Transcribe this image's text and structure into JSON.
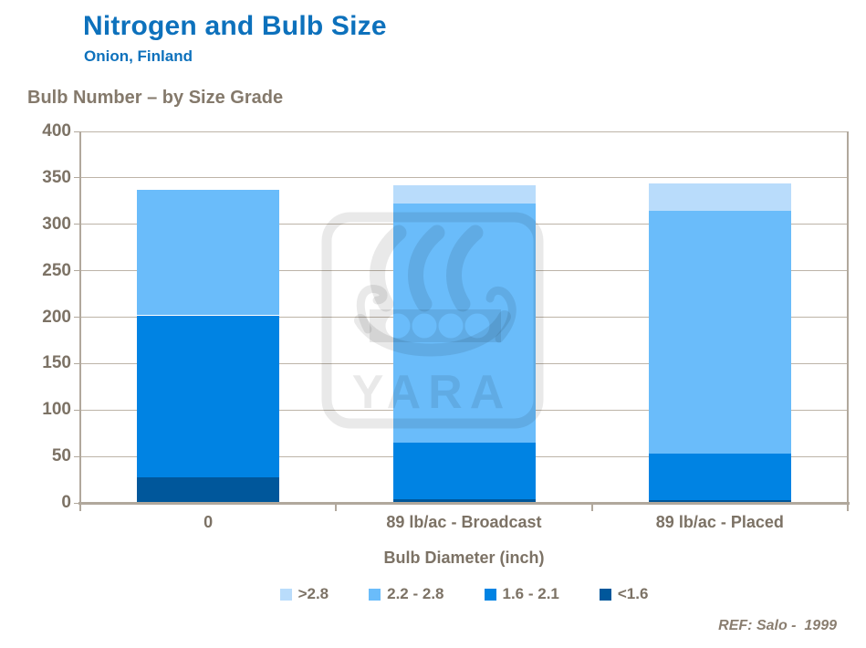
{
  "header": {
    "title": "Nitrogen and Bulb Size",
    "subtitle": "Onion, Finland"
  },
  "chart": {
    "heading": "Bulb Number – by Size Grade"
  },
  "watermark": {
    "text": "YARA"
  },
  "footer": {
    "ref": "REF: Salo -  1999"
  },
  "colors": {
    "title_blue": "#0d71bc",
    "axis_text": "#7c7265",
    "heading_text": "#84796b",
    "gridline": "#bdb4a8",
    "axis_line": "#b1a89c"
  },
  "chart_data": {
    "type": "bar",
    "stacked": true,
    "title": "Bulb Number – by Size Grade",
    "xlabel": "Bulb Diameter (inch)",
    "ylabel": "",
    "ylim": [
      0,
      400
    ],
    "ytick_step": 50,
    "grid": true,
    "legend_position": "bottom",
    "categories": [
      "0",
      "89 lb/ac - Broadcast",
      "89 lb/ac - Placed"
    ],
    "series": [
      {
        "name": ">2.8",
        "color": "#b9dcfb",
        "values": [
          0,
          20,
          29
        ]
      },
      {
        "name": "2.2 - 2.8",
        "color": "#6abcfa",
        "values": [
          135,
          257,
          262
        ]
      },
      {
        "name": "1.6 - 2.1",
        "color": "#0083e3",
        "values": [
          174,
          61,
          50
        ]
      },
      {
        "name": "<1.6",
        "color": "#00579b",
        "values": [
          28,
          4,
          3
        ]
      }
    ],
    "totals": [
      337,
      342,
      344
    ]
  }
}
